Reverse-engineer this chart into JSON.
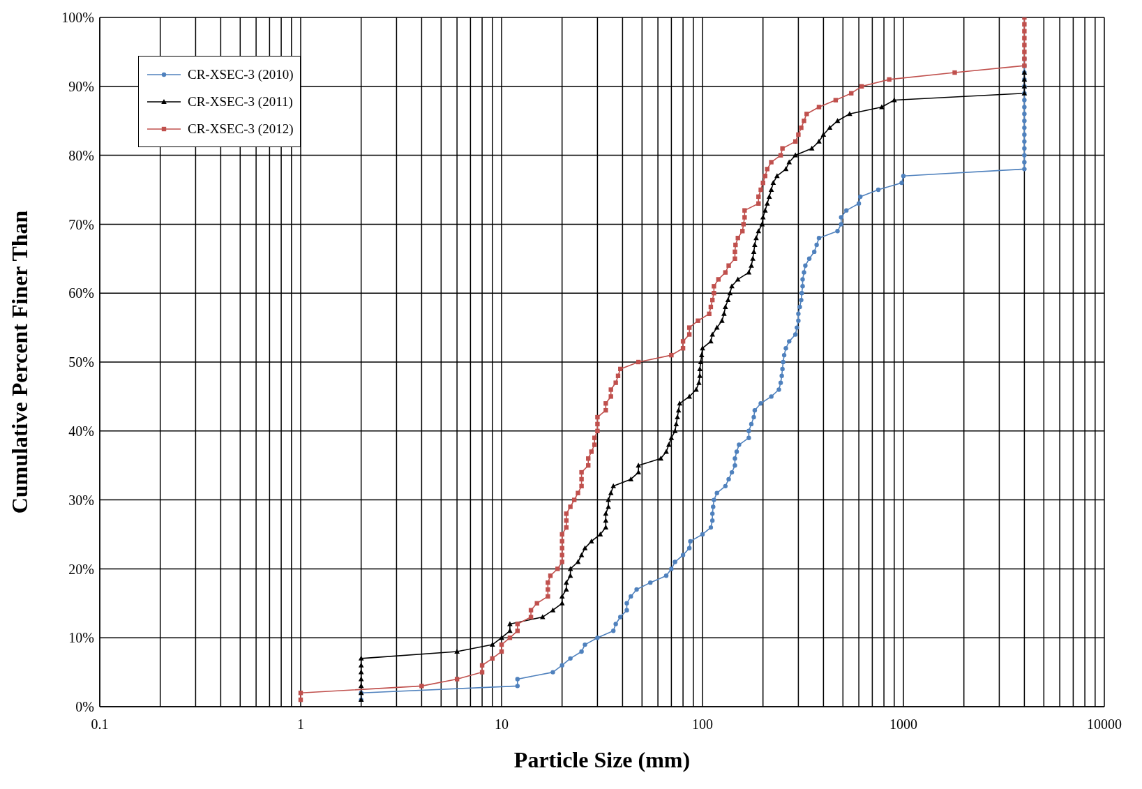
{
  "chart_data": {
    "type": "line",
    "xlabel": "Particle Size (mm)",
    "ylabel": "Cumulative Percent Finer Than",
    "log": "x",
    "xlim": [
      0.1,
      10000
    ],
    "xticks": [
      0.1,
      {
        "value": 0.2,
        "label": null
      },
      {
        "value": 0.3,
        "label": null
      },
      {
        "value": 0.4,
        "label": null
      },
      {
        "value": 0.5,
        "label": null
      },
      {
        "value": 0.6,
        "label": null
      },
      {
        "value": 0.7,
        "label": null
      },
      {
        "value": 0.8,
        "label": null
      },
      {
        "value": 0.9,
        "label": null
      },
      1,
      {
        "value": 2,
        "label": null
      },
      {
        "value": 3,
        "label": null
      },
      {
        "value": 4,
        "label": null
      },
      {
        "value": 5,
        "label": null
      },
      {
        "value": 6,
        "label": null
      },
      {
        "value": 7,
        "label": null
      },
      {
        "value": 8,
        "label": null
      },
      {
        "value": 9,
        "label": null
      },
      10,
      {
        "value": 20,
        "label": null
      },
      {
        "value": 30,
        "label": null
      },
      {
        "value": 40,
        "label": null
      },
      {
        "value": 50,
        "label": null
      },
      {
        "value": 60,
        "label": null
      },
      {
        "value": 70,
        "label": null
      },
      {
        "value": 80,
        "label": null
      },
      {
        "value": 90,
        "label": null
      },
      100,
      {
        "value": 200,
        "label": null
      },
      {
        "value": 300,
        "label": null
      },
      {
        "value": 400,
        "label": null
      },
      {
        "value": 500,
        "label": null
      },
      {
        "value": 600,
        "label": null
      },
      {
        "value": 700,
        "label": null
      },
      {
        "value": 800,
        "label": null
      },
      {
        "value": 900,
        "label": null
      },
      1000,
      {
        "value": 2000,
        "label": null
      },
      {
        "value": 3000,
        "label": null
      },
      {
        "value": 4000,
        "label": null
      },
      {
        "value": 5000,
        "label": null
      },
      {
        "value": 6000,
        "label": null
      },
      {
        "value": 7000,
        "label": null
      },
      {
        "value": 8000,
        "label": null
      },
      {
        "value": 9000,
        "label": null
      },
      10000
    ],
    "ylim": [
      0,
      100
    ],
    "yticks": [
      {
        "value": 0,
        "label": "0%"
      },
      {
        "value": 10,
        "label": "10%"
      },
      {
        "value": 20,
        "label": "20%"
      },
      {
        "value": 30,
        "label": "30%"
      },
      {
        "value": 40,
        "label": "40%"
      },
      {
        "value": 50,
        "label": "50%"
      },
      {
        "value": 60,
        "label": "60%"
      },
      {
        "value": 70,
        "label": "70%"
      },
      {
        "value": 80,
        "label": "80%"
      },
      {
        "value": 90,
        "label": "90%"
      },
      {
        "value": 100,
        "label": "100%"
      }
    ],
    "grid": true,
    "legend": "top left",
    "line_style": "solid",
    "series": [
      {
        "name": "CR-XSEC-3 (2010)",
        "color": "#4f81bd",
        "marker": "circle",
        "x": [
          2,
          2,
          12,
          12,
          18,
          20,
          22,
          25,
          26,
          30,
          36,
          37,
          39,
          42,
          42,
          44,
          47,
          55,
          66,
          70,
          73,
          80,
          86,
          87,
          100,
          110,
          112,
          112,
          113,
          114,
          118,
          130,
          135,
          140,
          145,
          145,
          148,
          152,
          170,
          170,
          175,
          180,
          182,
          195,
          220,
          240,
          245,
          248,
          250,
          252,
          255,
          260,
          270,
          290,
          295,
          300,
          300,
          305,
          310,
          312,
          315,
          315,
          320,
          325,
          340,
          360,
          370,
          380,
          470,
          490,
          490,
          520,
          600,
          610,
          750,
          980,
          1000,
          4000,
          4000,
          4000,
          4000,
          4000,
          4000,
          4000,
          4000,
          4000,
          4000,
          4000,
          4000,
          4000,
          4000,
          4000,
          4000,
          4000
        ],
        "values": [
          1,
          2,
          3,
          4,
          5,
          6,
          7,
          8,
          9,
          10,
          11,
          12,
          13,
          14,
          15,
          16,
          17,
          18,
          19,
          20,
          21,
          22,
          23,
          24,
          25,
          26,
          27,
          28,
          29,
          30,
          31,
          32,
          33,
          34,
          35,
          36,
          37,
          38,
          39,
          40,
          41,
          42,
          43,
          44,
          45,
          46,
          47,
          48,
          49,
          50,
          51,
          52,
          53,
          54,
          55,
          56,
          57,
          58,
          59,
          60,
          61,
          62,
          63,
          64,
          65,
          66,
          67,
          68,
          69,
          70,
          71,
          72,
          73,
          74,
          75,
          76,
          77,
          78,
          79,
          80,
          81,
          82,
          83,
          84,
          85,
          86,
          87,
          88,
          89,
          90,
          91,
          92,
          93,
          94
        ]
      },
      {
        "name": "CR-XSEC-3 (2011)",
        "color": "#000000",
        "marker": "triangle",
        "x": [
          2,
          2,
          2,
          2,
          2,
          2,
          2,
          6,
          9,
          10,
          11,
          11,
          16,
          18,
          20,
          20,
          21,
          21,
          22,
          22,
          24,
          25,
          26,
          28,
          31,
          33,
          33,
          33,
          34,
          34,
          35,
          36,
          44,
          48,
          48,
          62,
          66,
          68,
          70,
          73,
          74,
          75,
          76,
          77,
          86,
          93,
          96,
          97,
          97,
          98,
          99,
          100,
          110,
          112,
          118,
          125,
          128,
          130,
          134,
          137,
          140,
          150,
          170,
          175,
          178,
          180,
          182,
          185,
          190,
          198,
          200,
          205,
          210,
          215,
          220,
          225,
          235,
          260,
          270,
          290,
          350,
          380,
          400,
          430,
          470,
          540,
          780,
          900,
          4000,
          4000,
          4000,
          4000
        ],
        "values": [
          1,
          2,
          3,
          4,
          5,
          6,
          7,
          8,
          9,
          10,
          11,
          12,
          13,
          14,
          15,
          16,
          17,
          18,
          19,
          20,
          21,
          22,
          23,
          24,
          25,
          26,
          27,
          28,
          29,
          30,
          31,
          32,
          33,
          34,
          35,
          36,
          37,
          38,
          39,
          40,
          41,
          42,
          43,
          44,
          45,
          46,
          47,
          48,
          49,
          50,
          51,
          52,
          53,
          54,
          55,
          56,
          57,
          58,
          59,
          60,
          61,
          62,
          63,
          64,
          65,
          66,
          67,
          68,
          69,
          70,
          71,
          72,
          73,
          74,
          75,
          76,
          77,
          78,
          79,
          80,
          81,
          82,
          83,
          84,
          85,
          86,
          87,
          88,
          89,
          90,
          91,
          92
        ]
      },
      {
        "name": "CR-XSEC-3 (2012)",
        "color": "#c0504d",
        "marker": "square",
        "x": [
          1,
          1,
          4,
          6,
          8,
          8,
          9,
          10,
          10,
          11,
          12,
          12,
          14,
          14,
          15,
          17,
          17,
          17,
          17.5,
          19,
          20,
          20,
          20,
          20,
          20,
          21,
          21,
          21,
          22,
          23,
          24,
          25,
          25,
          25,
          27,
          27,
          28,
          29,
          29,
          30,
          30,
          30,
          33,
          33,
          35,
          35,
          37,
          38,
          39,
          48,
          70,
          80,
          80,
          86,
          86,
          95,
          108,
          110,
          112,
          114,
          114,
          120,
          130,
          135,
          145,
          145,
          146,
          150,
          158,
          160,
          162,
          162,
          190,
          190,
          195,
          200,
          205,
          210,
          220,
          245,
          250,
          290,
          300,
          310,
          320,
          330,
          380,
          460,
          550,
          620,
          850,
          1800,
          4000,
          4000,
          4000,
          4000,
          4000,
          4000,
          4000,
          4000
        ],
        "values": [
          1,
          2,
          3,
          4,
          5,
          6,
          7,
          8,
          9,
          10,
          11,
          12,
          13,
          14,
          15,
          16,
          17,
          18,
          19,
          20,
          21,
          22,
          23,
          24,
          25,
          26,
          27,
          28,
          29,
          30,
          31,
          32,
          33,
          34,
          35,
          36,
          37,
          38,
          39,
          40,
          41,
          42,
          43,
          44,
          45,
          46,
          47,
          48,
          49,
          50,
          51,
          52,
          53,
          54,
          55,
          56,
          57,
          58,
          59,
          60,
          61,
          62,
          63,
          64,
          65,
          66,
          67,
          68,
          69,
          70,
          71,
          72,
          73,
          74,
          75,
          76,
          77,
          78,
          79,
          80,
          81,
          82,
          83,
          84,
          85,
          86,
          87,
          88,
          89,
          90,
          91,
          92,
          93,
          94,
          95,
          96,
          97,
          98,
          99,
          100
        ]
      }
    ]
  }
}
